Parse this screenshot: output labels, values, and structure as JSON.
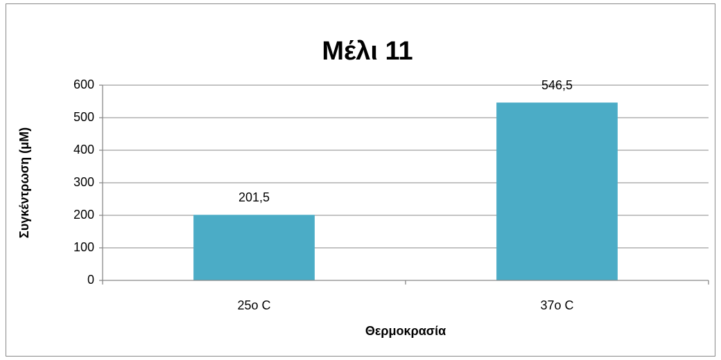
{
  "chart_data": {
    "type": "bar",
    "title": "Μέλι 11",
    "x_label": "Θερμοκρασία",
    "y_label": "Συγκέντρωση (μM)",
    "categories": [
      "25o C",
      "37o C"
    ],
    "values": [
      201.5,
      546.5
    ],
    "value_labels": [
      "201,5",
      "546,5"
    ],
    "color": "#4bacc6",
    "ylim": [
      0,
      600
    ],
    "yticks": [
      0,
      100,
      200,
      300,
      400,
      500,
      600
    ],
    "grid": true
  }
}
